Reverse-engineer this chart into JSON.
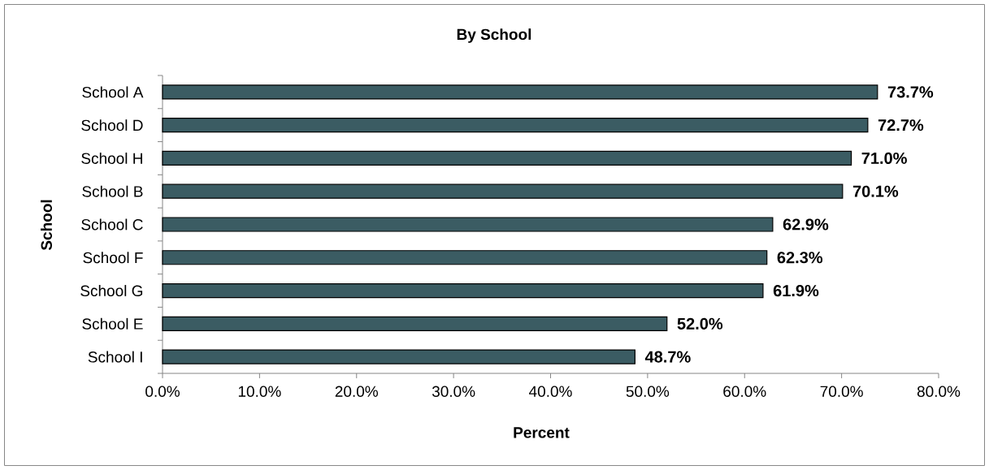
{
  "chart_data": {
    "type": "bar",
    "orientation": "horizontal",
    "title": "By School",
    "xlabel": "Percent",
    "ylabel": "School",
    "categories": [
      "School A",
      "School D",
      "School H",
      "School B",
      "School C",
      "School F",
      "School G",
      "School E",
      "School I"
    ],
    "values": [
      73.7,
      72.7,
      71.0,
      70.1,
      62.9,
      62.3,
      61.9,
      52.0,
      48.7
    ],
    "value_labels": [
      "73.7%",
      "72.7%",
      "71.0%",
      "70.1%",
      "62.9%",
      "62.3%",
      "61.9%",
      "52.0%",
      "48.7%"
    ],
    "color": "#3b5c63",
    "xlim": [
      0,
      80
    ],
    "xticks": [
      {
        "value": 0,
        "label": "0.0%"
      },
      {
        "value": 10,
        "label": "10.0%"
      },
      {
        "value": 20,
        "label": "20.0%"
      },
      {
        "value": 30,
        "label": "30.0%"
      },
      {
        "value": 40,
        "label": "40.0%"
      },
      {
        "value": 50,
        "label": "50.0%"
      },
      {
        "value": 60,
        "label": "60.0%"
      },
      {
        "value": 70,
        "label": "70.0%"
      },
      {
        "value": 80,
        "label": "80.0%"
      }
    ]
  }
}
